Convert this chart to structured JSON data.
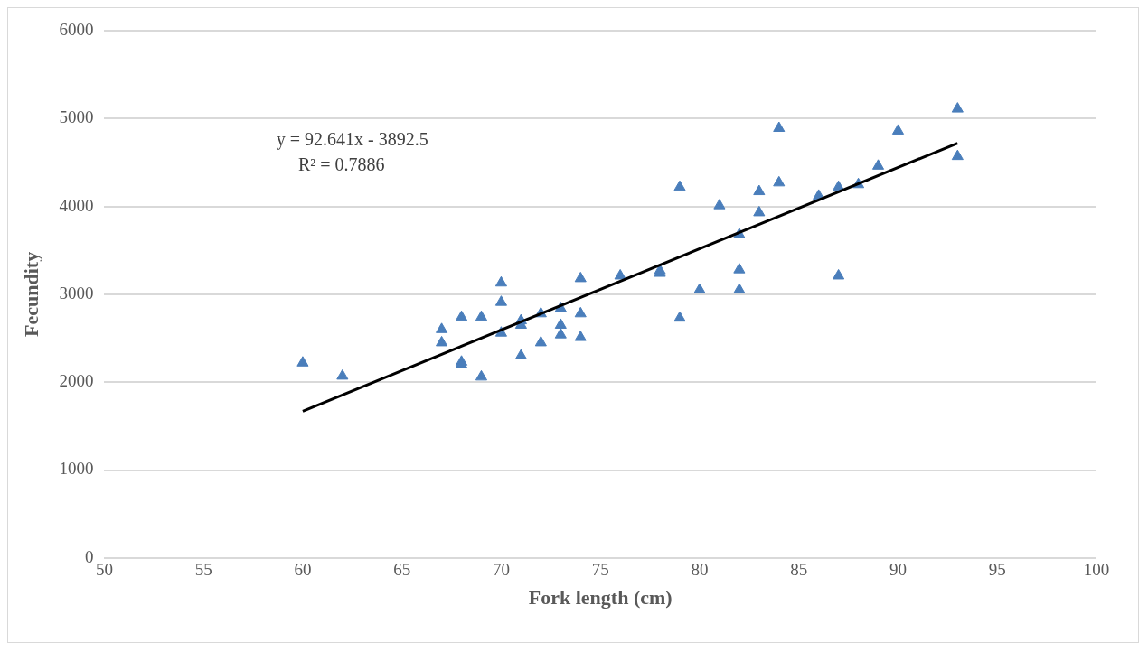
{
  "chart_data": {
    "type": "scatter",
    "xlabel": "Fork length (cm)",
    "ylabel": "Fecundity",
    "annotations": [
      "y = 92.641x - 3892.5",
      "R² = 0.7886"
    ],
    "xlim": [
      50,
      100
    ],
    "xticks": [
      50,
      55,
      60,
      65,
      70,
      75,
      80,
      85,
      90,
      95,
      100
    ],
    "ylim": [
      0,
      6000
    ],
    "yticks": [
      0,
      1000,
      2000,
      3000,
      4000,
      5000,
      6000
    ],
    "grid": "y",
    "legend": false,
    "marker": "triangle",
    "series": [
      {
        "type": "scatter",
        "color": "#4a7ebb",
        "x": [
          60,
          62,
          67,
          67,
          68,
          68,
          68,
          69,
          69,
          70,
          70,
          70,
          71,
          71,
          71,
          72,
          72,
          73,
          73,
          73,
          74,
          74,
          74,
          76,
          78,
          78,
          79,
          79,
          80,
          81,
          82,
          82,
          82,
          83,
          83,
          84,
          84,
          86,
          87,
          87,
          88,
          89,
          90,
          93,
          93
        ],
        "values": [
          2220,
          2070,
          2600,
          2450,
          2740,
          2230,
          2200,
          2740,
          2060,
          3130,
          2910,
          2560,
          2700,
          2650,
          2300,
          2780,
          2450,
          2840,
          2650,
          2540,
          3180,
          2780,
          2510,
          3210,
          3270,
          3240,
          4220,
          2730,
          3050,
          4010,
          3680,
          3280,
          3050,
          4170,
          3930,
          4890,
          4270,
          4120,
          4220,
          3210,
          4250,
          4460,
          4860,
          5110,
          4570
        ]
      },
      {
        "type": "line",
        "color": "#000000",
        "marker": "none",
        "x": [
          60,
          93
        ],
        "values": [
          1670,
          4720
        ]
      }
    ]
  }
}
